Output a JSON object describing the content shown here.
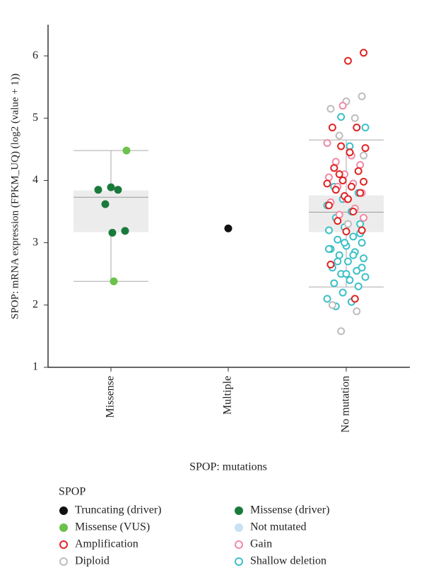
{
  "chart_data": {
    "type": "box",
    "y_label": "SPOP: mRNA expression (FPKM_UQ) (log2 (value + 1))",
    "x_label": "SPOP: mutations",
    "categories": [
      "Missense",
      "Multiple",
      "No mutation"
    ],
    "ylim": [
      1,
      6.5
    ],
    "yticks": [
      1,
      2,
      3,
      4,
      5,
      6
    ],
    "boxes": [
      {
        "whislo": 2.38,
        "q1": 3.17,
        "median": 3.73,
        "q3": 3.84,
        "whishi": 4.48
      },
      null,
      {
        "whislo": 2.29,
        "q1": 3.17,
        "median": 3.49,
        "q3": 3.76,
        "whishi": 4.65
      }
    ],
    "legend_title": "SPOP",
    "series": [
      {
        "name": "Truncating (driver)",
        "fill": "#111111",
        "stroke": "#111111",
        "category": [
          1
        ],
        "values": [
          3.23
        ]
      },
      {
        "name": "Missense (driver)",
        "fill": "#1a7a3c",
        "stroke": "#1a7a3c",
        "category": [
          0,
          0,
          0,
          0,
          0,
          0
        ],
        "values": [
          3.89,
          3.85,
          3.85,
          3.62,
          3.19,
          3.16
        ]
      },
      {
        "name": "Missense (VUS)",
        "fill": "#6cc24a",
        "stroke": "#6cc24a",
        "category": [
          0,
          0
        ],
        "values": [
          4.48,
          2.38
        ]
      },
      {
        "name": "Not mutated",
        "fill": "#c6e2f5",
        "stroke": "#c6e2f5",
        "category": [],
        "values": []
      },
      {
        "name": "Amplification",
        "fill": "#ffffff",
        "stroke": "#e02424",
        "category": [
          2,
          2,
          2,
          2,
          2,
          2,
          2,
          2,
          2,
          2,
          2,
          2,
          2,
          2,
          2,
          2,
          2,
          2,
          2,
          2,
          2,
          2,
          2,
          2,
          2
        ],
        "values": [
          6.05,
          5.92,
          4.85,
          4.85,
          4.55,
          4.52,
          4.45,
          4.2,
          4.15,
          4.0,
          3.95,
          3.9,
          3.85,
          3.8,
          3.75,
          3.6,
          3.5,
          3.35,
          3.2,
          3.18,
          2.65,
          2.1,
          4.1,
          3.98,
          3.7
        ]
      },
      {
        "name": "Gain",
        "fill": "#ffffff",
        "stroke": "#f08aa6",
        "category": [
          2,
          2,
          2,
          2,
          2,
          2,
          2,
          2,
          2,
          2,
          2,
          2,
          2,
          2,
          2
        ],
        "values": [
          5.2,
          4.6,
          4.4,
          4.3,
          4.25,
          4.1,
          4.05,
          3.95,
          3.9,
          3.8,
          3.7,
          3.65,
          3.55,
          3.45,
          3.4
        ]
      },
      {
        "name": "Diploid",
        "fill": "#ffffff",
        "stroke": "#bdbdbd",
        "category": [
          2,
          2,
          2,
          2,
          2,
          2,
          2,
          2,
          2,
          2
        ],
        "values": [
          5.35,
          5.27,
          5.15,
          5.0,
          4.72,
          4.4,
          3.3,
          2.0,
          1.9,
          1.58
        ]
      },
      {
        "name": "Shallow deletion",
        "fill": "#ffffff",
        "stroke": "#3cc0c8",
        "category": [
          2,
          2,
          2,
          2,
          2,
          2,
          2,
          2,
          2,
          2,
          2,
          2,
          2,
          2,
          2,
          2,
          2,
          2,
          2,
          2,
          2,
          2,
          2,
          2,
          2,
          2,
          2,
          2,
          2,
          2,
          2,
          2,
          2,
          2,
          2,
          2,
          2,
          2,
          2
        ],
        "values": [
          5.02,
          4.85,
          4.55,
          3.9,
          3.8,
          3.7,
          3.6,
          3.5,
          3.4,
          3.3,
          3.25,
          3.2,
          3.1,
          3.05,
          3.0,
          2.95,
          2.9,
          2.85,
          2.8,
          2.75,
          2.7,
          2.6,
          2.55,
          2.5,
          2.45,
          2.4,
          2.35,
          2.3,
          2.2,
          2.1,
          2.05,
          1.98,
          3.15,
          3.0,
          2.9,
          2.8,
          2.7,
          2.6,
          2.5
        ]
      }
    ]
  }
}
